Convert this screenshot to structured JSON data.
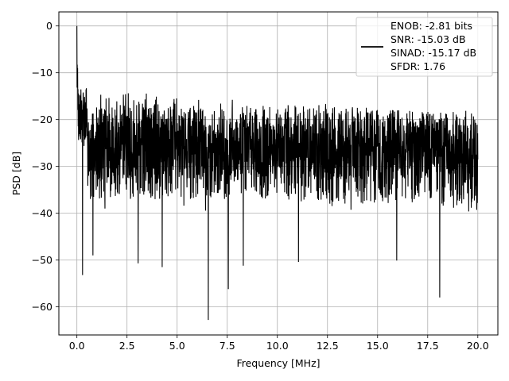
{
  "chart_data": {
    "type": "line",
    "title": "",
    "xlabel": "Frequency [MHz]",
    "ylabel": "PSD [dB]",
    "xlim": [
      -0.9,
      21.0
    ],
    "ylim": [
      -66,
      3
    ],
    "xticks": [
      0.0,
      2.5,
      5.0,
      7.5,
      10.0,
      12.5,
      15.0,
      17.5,
      20.0
    ],
    "xtick_labels": [
      "0.0",
      "2.5",
      "5.0",
      "7.5",
      "10.0",
      "12.5",
      "15.0",
      "17.5",
      "20.0"
    ],
    "yticks": [
      0,
      -10,
      -20,
      -30,
      -40,
      -50,
      -60
    ],
    "ytick_labels": [
      "0",
      "−10",
      "−20",
      "−30",
      "−40",
      "−50",
      "−60"
    ],
    "grid": true,
    "legend_position": "top-right",
    "series": [
      {
        "name": "ENOB: -2.81 bits",
        "legend_lines": [
          "ENOB: -2.81 bits",
          "SNR: -15.03 dB",
          "SINAD: -15.17 dB",
          "SFDR: 1.76"
        ],
        "color": "#000000",
        "x_range": [
          0.0,
          20.0
        ],
        "peaks": [
          {
            "x": 0.0,
            "y": 0.0
          },
          {
            "x": 0.03,
            "y": -9.0
          },
          {
            "x": 0.28,
            "y": -53.2
          },
          {
            "x": 0.8,
            "y": -49.0
          },
          {
            "x": 1.4,
            "y": -39.0
          },
          {
            "x": 3.05,
            "y": -50.7
          },
          {
            "x": 4.25,
            "y": -51.5
          },
          {
            "x": 6.55,
            "y": -62.8
          },
          {
            "x": 7.55,
            "y": -56.2
          },
          {
            "x": 8.3,
            "y": -51.2
          },
          {
            "x": 11.05,
            "y": -50.4
          },
          {
            "x": 15.95,
            "y": -50.1
          },
          {
            "x": 18.1,
            "y": -58.0
          }
        ],
        "upper_envelope": [
          [
            0.5,
            -15.0
          ],
          [
            2.5,
            -13.5
          ],
          [
            5.0,
            -15.0
          ],
          [
            7.5,
            -15.5
          ],
          [
            10.0,
            -16.5
          ],
          [
            12.5,
            -16.5
          ],
          [
            15.0,
            -17.5
          ],
          [
            17.5,
            -18.0
          ],
          [
            20.0,
            -20.0
          ]
        ],
        "lower_envelope": [
          [
            0.5,
            -37.0
          ],
          [
            2.5,
            -37.0
          ],
          [
            5.0,
            -37.0
          ],
          [
            7.5,
            -36.5
          ],
          [
            10.0,
            -37.0
          ],
          [
            12.5,
            -38.0
          ],
          [
            15.0,
            -38.0
          ],
          [
            17.5,
            -38.0
          ],
          [
            20.0,
            -40.0
          ]
        ]
      }
    ]
  }
}
